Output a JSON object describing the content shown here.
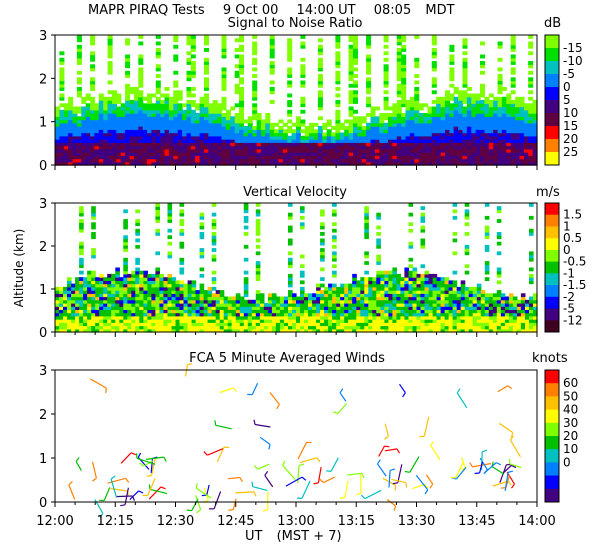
{
  "header": {
    "title": "MAPR PIRAQ Tests",
    "date": "9 Oct 00",
    "time_ut": "14:00 UT",
    "time_local": "08:05",
    "tz": "MDT"
  },
  "x_axis": {
    "ticks": [
      "12:00",
      "12:15",
      "12:30",
      "12:45",
      "13:00",
      "13:15",
      "13:30",
      "13:45",
      "14:00"
    ],
    "label": "UT",
    "label2": "(MST + 7)"
  },
  "shared_ylabel": "Altitude (km)",
  "chart_data": [
    {
      "type": "heatmap",
      "title": "Signal to Noise Ratio",
      "xlim": [
        "12:00",
        "14:00"
      ],
      "ylim": [
        0,
        3
      ],
      "yticks": [
        "0",
        "1",
        "2",
        "3"
      ],
      "units": "dB",
      "colorbar": {
        "levels": [
          "-15",
          "-10",
          "-5",
          "0",
          "5",
          "10",
          "15",
          "20",
          "25"
        ],
        "colors": [
          "#7fff00",
          "#00e000",
          "#00c0c0",
          "#0080ff",
          "#0000ff",
          "#400080",
          "#600040",
          "#ff0000",
          "#ff8000",
          "#ffff00"
        ]
      },
      "description_profile": {
        "heights_km": [
          0.1,
          0.3,
          0.5,
          0.8,
          1.0,
          1.3,
          2.0,
          2.8
        ],
        "typical_snr_db": [
          10,
          5,
          0,
          -5,
          -10,
          -12,
          -15,
          -15
        ]
      }
    },
    {
      "type": "heatmap",
      "title": "Vertical Velocity",
      "xlim": [
        "12:00",
        "14:00"
      ],
      "ylim": [
        0,
        3
      ],
      "yticks": [
        "0",
        "1",
        "2",
        "3"
      ],
      "units": "m/s",
      "colorbar": {
        "levels": [
          "1.5",
          "1",
          "0.5",
          "0",
          "-0.5",
          "-1",
          "-1.5",
          "-2",
          "-5",
          "-12"
        ],
        "colors": [
          "#ff0000",
          "#ff8000",
          "#ffc000",
          "#ffff00",
          "#80ff00",
          "#00c000",
          "#00c0c0",
          "#0080ff",
          "#0000ff",
          "#400080",
          "#400020"
        ]
      }
    },
    {
      "type": "scatter",
      "title": "FCA 5 Minute Averaged Winds",
      "xlim": [
        "12:00",
        "14:00"
      ],
      "ylim": [
        0,
        3
      ],
      "yticks": [
        "0",
        "1",
        "2",
        "3"
      ],
      "units": "knots",
      "colorbar": {
        "levels": [
          "60",
          "50",
          "40",
          "30",
          "20",
          "10",
          "0"
        ],
        "colors": [
          "#ff0000",
          "#ff8000",
          "#ffc000",
          "#ffff00",
          "#80ff00",
          "#00c000",
          "#00c0c0",
          "#0080ff",
          "#0000ff",
          "#400080"
        ]
      }
    }
  ]
}
